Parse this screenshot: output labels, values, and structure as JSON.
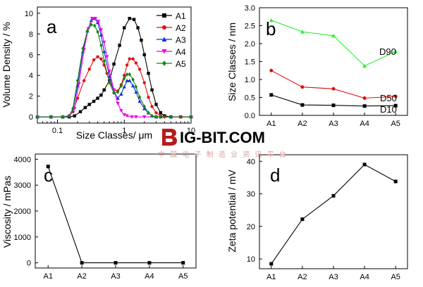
{
  "chart_data": [
    {
      "panel": "a",
      "type": "line",
      "xlabel": "Size Classes/ μm",
      "ylabel": "Volume Density / %",
      "xscale": "log",
      "xlim": [
        0.05,
        10
      ],
      "ylim": [
        -0.6,
        10.6
      ],
      "xticks": [
        {
          "v": 0.1,
          "label": "0.1"
        },
        {
          "v": 1,
          "label": "1"
        },
        {
          "v": 10,
          "label": "10"
        }
      ],
      "yticks": [
        0,
        2,
        4,
        6,
        8,
        10
      ],
      "legend": "top-right",
      "series": [
        {
          "name": "A1",
          "color": "#000000",
          "marker": "square",
          "x": [
            0.05,
            0.08,
            0.12,
            0.15,
            0.18,
            0.22,
            0.26,
            0.3,
            0.35,
            0.4,
            0.45,
            0.5,
            0.6,
            0.7,
            0.85,
            1.0,
            1.2,
            1.4,
            1.6,
            1.8,
            2.0,
            2.3,
            2.6,
            3.0,
            3.5,
            4.0,
            5.0,
            7.0,
            10.0
          ],
          "y": [
            0,
            0,
            0,
            0,
            0.1,
            0.5,
            0.9,
            1.2,
            1.5,
            1.8,
            2.1,
            2.6,
            3.5,
            5.1,
            6.9,
            8.6,
            9.5,
            9.4,
            8.6,
            7.4,
            6.0,
            4.2,
            2.6,
            1.2,
            0.4,
            0.1,
            0,
            0,
            0
          ]
        },
        {
          "name": "A2",
          "color": "#dd1111",
          "marker": "circle",
          "x": [
            0.05,
            0.08,
            0.12,
            0.15,
            0.17,
            0.2,
            0.25,
            0.3,
            0.35,
            0.4,
            0.45,
            0.5,
            0.55,
            0.6,
            0.7,
            0.8,
            0.9,
            1.0,
            1.1,
            1.2,
            1.35,
            1.5,
            1.7,
            2.0,
            2.3,
            2.6,
            3.0,
            3.5,
            4.0,
            5.0,
            7.0,
            10.0
          ],
          "y": [
            0,
            0,
            0,
            0.1,
            0.5,
            1.8,
            3.5,
            4.6,
            5.5,
            5.8,
            5.6,
            5.0,
            4.2,
            3.4,
            2.6,
            2.5,
            3.1,
            4.0,
            5.0,
            5.6,
            5.6,
            5.2,
            4.6,
            3.3,
            1.9,
            1.0,
            0.4,
            0.1,
            0,
            0,
            0,
            0
          ]
        },
        {
          "name": "A3",
          "color": "#1133dd",
          "marker": "triangle",
          "x": [
            0.05,
            0.08,
            0.12,
            0.15,
            0.17,
            0.2,
            0.24,
            0.28,
            0.32,
            0.36,
            0.4,
            0.45,
            0.5,
            0.6,
            0.7,
            0.8,
            0.9,
            1.0,
            1.1,
            1.2,
            1.35,
            1.5,
            1.7,
            2.0,
            2.3,
            2.6,
            3.0,
            3.5,
            5.0,
            10.0
          ],
          "y": [
            0,
            0,
            0,
            0.1,
            0.6,
            3.0,
            6.3,
            8.3,
            9.3,
            9.5,
            9.1,
            7.9,
            6.3,
            3.9,
            2.4,
            1.8,
            2.2,
            2.9,
            3.5,
            3.5,
            3.0,
            2.4,
            1.5,
            0.8,
            0.4,
            0.1,
            0,
            0,
            0,
            0
          ]
        },
        {
          "name": "A4",
          "color": "#ee00ee",
          "marker": "triangle-down",
          "x": [
            0.05,
            0.08,
            0.12,
            0.15,
            0.18,
            0.21,
            0.25,
            0.29,
            0.33,
            0.37,
            0.41,
            0.45,
            0.5,
            0.55,
            0.6,
            0.7,
            0.8,
            0.9,
            1.0,
            1.1,
            1.3,
            1.5,
            2.0,
            3.0,
            10.0
          ],
          "y": [
            0,
            0,
            0,
            0.1,
            0.8,
            3.2,
            6.5,
            8.5,
            9.5,
            9.5,
            9.2,
            8.4,
            7.2,
            5.8,
            4.4,
            2.6,
            1.3,
            0.6,
            0.2,
            0.1,
            0,
            0,
            0,
            0,
            0
          ]
        },
        {
          "name": "A5",
          "color": "#118811",
          "marker": "diamond",
          "x": [
            0.05,
            0.08,
            0.12,
            0.15,
            0.17,
            0.2,
            0.24,
            0.28,
            0.32,
            0.36,
            0.4,
            0.45,
            0.5,
            0.6,
            0.7,
            0.8,
            0.9,
            1.0,
            1.1,
            1.2,
            1.35,
            1.5,
            1.7,
            2.0,
            2.3,
            2.6,
            3.0,
            3.5,
            5.0,
            10.0
          ],
          "y": [
            0,
            0,
            0,
            0.1,
            0.8,
            3.5,
            6.6,
            8.3,
            8.9,
            8.8,
            8.2,
            6.9,
            5.4,
            3.3,
            2.3,
            2.4,
            3.0,
            3.7,
            4.1,
            4.1,
            3.6,
            2.9,
            1.9,
            1.0,
            0.4,
            0.1,
            0,
            0,
            0,
            0
          ]
        }
      ]
    },
    {
      "panel": "b",
      "type": "line",
      "xlabel": "",
      "ylabel": "Size Classes / nm",
      "categories": [
        "A1",
        "A2",
        "A3",
        "A4",
        "A5"
      ],
      "ylim": [
        0,
        3.0
      ],
      "yticks": [
        0.0,
        0.5,
        1.0,
        1.5,
        2.0,
        2.5,
        3.0
      ],
      "series": [
        {
          "name": "D90",
          "color": "#33ee33",
          "marker": "triangle",
          "values": [
            2.65,
            2.33,
            2.22,
            1.38,
            1.78
          ]
        },
        {
          "name": "D50",
          "color": "#dd1111",
          "marker": "circle",
          "values": [
            1.25,
            0.79,
            0.74,
            0.48,
            0.53
          ]
        },
        {
          "name": "D10",
          "color": "#000000",
          "marker": "square",
          "values": [
            0.57,
            0.29,
            0.28,
            0.26,
            0.27
          ]
        }
      ]
    },
    {
      "panel": "c",
      "type": "line",
      "xlabel": "",
      "ylabel": "Viscosity / mPas",
      "categories": [
        "A1",
        "A2",
        "A3",
        "A4",
        "A5"
      ],
      "ylim": [
        -200,
        4200
      ],
      "yticks": [
        0,
        1000,
        2000,
        3000,
        4000
      ],
      "series": [
        {
          "color": "#000000",
          "marker": "square",
          "values": [
            3720,
            0,
            0,
            0,
            0
          ]
        }
      ]
    },
    {
      "panel": "d",
      "type": "line",
      "xlabel": "",
      "ylabel": "Zeta potential / mV",
      "categories": [
        "A1",
        "A2",
        "A3",
        "A4",
        "A5"
      ],
      "ylim": [
        7,
        42
      ],
      "yticks": [
        10,
        20,
        30,
        40
      ],
      "series": [
        {
          "color": "#000000",
          "marker": "square",
          "values": [
            8.5,
            22.2,
            29.4,
            39.0,
            33.8
          ]
        }
      ]
    }
  ],
  "watermark": {
    "logo_text": "IG-BIT.COM",
    "subtitle": "中 国 电 子 制 造 业 资 讯 平 台",
    "colors": {
      "logo": "#b71c1c",
      "subtitle": "#d8a0a0"
    }
  }
}
